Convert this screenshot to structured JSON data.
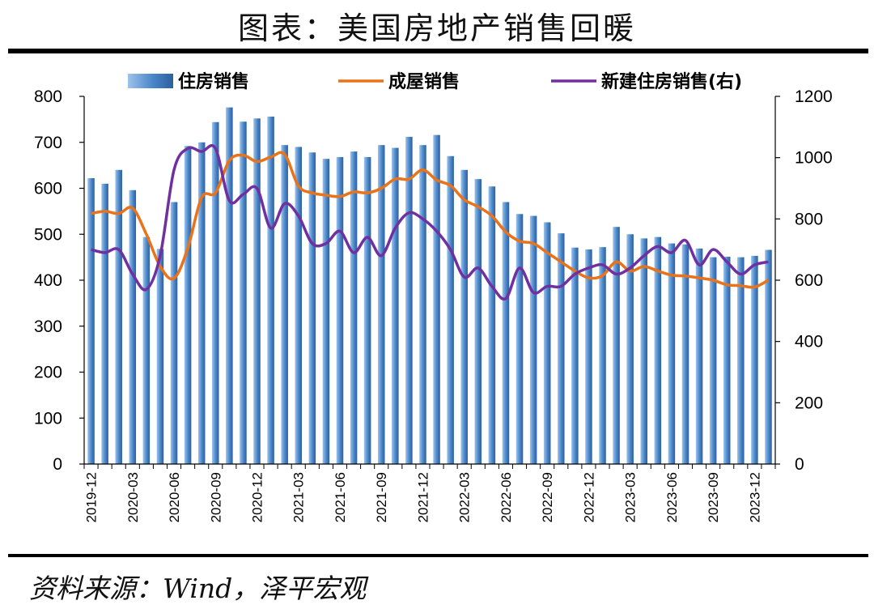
{
  "title": "图表：美国房地产销售回暖",
  "source": "资料来源：Wind，泽平宏观",
  "colors": {
    "bar": "#4a86c8",
    "existing": "#e8731a",
    "new": "#7030a0"
  },
  "chart_data": {
    "type": "bar",
    "categories": [
      "2019-12",
      "2020-01",
      "2020-02",
      "2020-03",
      "2020-04",
      "2020-05",
      "2020-06",
      "2020-07",
      "2020-08",
      "2020-09",
      "2020-10",
      "2020-11",
      "2020-12",
      "2021-01",
      "2021-02",
      "2021-03",
      "2021-04",
      "2021-05",
      "2021-06",
      "2021-07",
      "2021-08",
      "2021-09",
      "2021-10",
      "2021-11",
      "2021-12",
      "2022-01",
      "2022-02",
      "2022-03",
      "2022-04",
      "2022-05",
      "2022-06",
      "2022-07",
      "2022-08",
      "2022-09",
      "2022-10",
      "2022-11",
      "2022-12",
      "2023-01",
      "2023-02",
      "2023-03",
      "2023-04",
      "2023-05",
      "2023-06",
      "2023-07",
      "2023-08",
      "2023-09",
      "2023-10",
      "2023-11",
      "2023-12",
      "2024-01"
    ],
    "x_tick_labels": [
      "2019-12",
      "2020-03",
      "2020-06",
      "2020-09",
      "2020-12",
      "2021-03",
      "2021-06",
      "2021-09",
      "2021-12",
      "2022-03",
      "2022-06",
      "2022-09",
      "2022-12",
      "2023-03",
      "2023-06",
      "2023-09",
      "2023-12"
    ],
    "series": [
      {
        "name": "住房销售",
        "type": "bar",
        "axis": "left",
        "values": [
          622,
          610,
          640,
          596,
          494,
          468,
          570,
          692,
          700,
          744,
          776,
          745,
          752,
          756,
          694,
          690,
          678,
          664,
          668,
          680,
          668,
          694,
          688,
          712,
          694,
          716,
          670,
          640,
          620,
          604,
          570,
          544,
          540,
          526,
          502,
          471,
          467,
          472,
          516,
          500,
          491,
          494,
          480,
          478,
          469,
          450,
          451,
          450,
          453,
          466
        ]
      },
      {
        "name": "成屋销售",
        "type": "line",
        "axis": "left",
        "values": [
          545,
          550,
          545,
          557,
          500,
          430,
          404,
          470,
          580,
          590,
          660,
          672,
          658,
          668,
          674,
          605,
          590,
          585,
          582,
          592,
          590,
          600,
          620,
          620,
          640,
          618,
          606,
          575,
          560,
          540,
          505,
          485,
          480,
          460,
          440,
          420,
          405,
          410,
          440,
          420,
          430,
          420,
          411,
          409,
          405,
          400,
          390,
          388,
          385,
          400
        ]
      },
      {
        "name": "新建住房销售(右)",
        "type": "line",
        "axis": "right",
        "values": [
          700,
          690,
          700,
          620,
          570,
          680,
          960,
          1030,
          1020,
          1030,
          860,
          880,
          900,
          770,
          850,
          810,
          720,
          720,
          760,
          690,
          740,
          680,
          770,
          820,
          800,
          760,
          700,
          610,
          640,
          580,
          540,
          640,
          560,
          580,
          580,
          620,
          640,
          650,
          620,
          640,
          680,
          710,
          690,
          730,
          650,
          700,
          660,
          620,
          650,
          660
        ]
      }
    ],
    "y_left": {
      "min": 0,
      "max": 800,
      "ticks": [
        0,
        100,
        200,
        300,
        400,
        500,
        600,
        700,
        800
      ]
    },
    "y_right": {
      "min": 0,
      "max": 1200,
      "ticks": [
        0,
        200,
        400,
        600,
        800,
        1000,
        1200
      ]
    },
    "legend": {
      "position": "top"
    },
    "grid": false
  }
}
